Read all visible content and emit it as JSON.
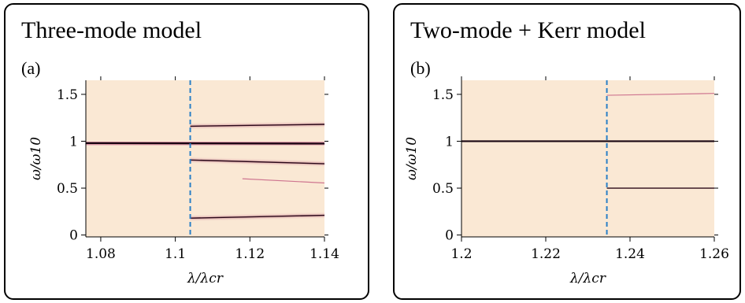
{
  "panels": [
    {
      "title": "Three-mode model",
      "letter": "(a)",
      "chart_data": {
        "type": "heatmap",
        "title": "Three-mode model",
        "xlabel": "λ/λcr",
        "ylabel": "ω/ω10",
        "xlim": [
          1.076,
          1.14
        ],
        "ylim": [
          -0.02,
          1.65
        ],
        "xticks": [
          1.08,
          1.1,
          1.12,
          1.14
        ],
        "xtick_labels": [
          "1.08",
          "1.1",
          "1.12",
          "1.14"
        ],
        "yticks": [
          0,
          0.5,
          1,
          1.5
        ],
        "ytick_labels": [
          "0",
          "0.5",
          "1",
          "1.5"
        ],
        "critical_lambda": 1.104,
        "background_color": "#fae8d4",
        "vline_color": "#2a7fc6",
        "lines": [
          {
            "x": [
              1.076,
              1.14
            ],
            "y": [
              0.98,
              0.975
            ],
            "weight": "strong"
          },
          {
            "x": [
              1.104,
              1.14
            ],
            "y": [
              1.16,
              1.18
            ],
            "weight": "medium"
          },
          {
            "x": [
              1.104,
              1.14
            ],
            "y": [
              0.8,
              0.76
            ],
            "weight": "medium"
          },
          {
            "x": [
              1.118,
              1.14
            ],
            "y": [
              0.6,
              0.555
            ],
            "weight": "faint"
          },
          {
            "x": [
              1.104,
              1.14
            ],
            "y": [
              0.18,
              0.21
            ],
            "weight": "medium"
          }
        ]
      }
    },
    {
      "title": "Two-mode + Kerr model",
      "letter": "(b)",
      "chart_data": {
        "type": "heatmap",
        "title": "Two-mode + Kerr model",
        "xlabel": "λ/λcr",
        "ylabel": "ω/ω10",
        "xlim": [
          1.2,
          1.26
        ],
        "ylim": [
          -0.02,
          1.65
        ],
        "xticks": [
          1.2,
          1.22,
          1.24,
          1.26
        ],
        "xtick_labels": [
          "1.2",
          "1.22",
          "1.24",
          "1.26"
        ],
        "yticks": [
          0,
          0.5,
          1,
          1.5
        ],
        "ytick_labels": [
          "0",
          "0.5",
          "1",
          "1.5"
        ],
        "critical_lambda": 1.2345,
        "background_color": "#fae8d4",
        "vline_color": "#2a7fc6",
        "lines": [
          {
            "x": [
              1.2,
              1.26
            ],
            "y": [
              1.0,
              1.0
            ],
            "weight": "strong"
          },
          {
            "x": [
              1.2345,
              1.26
            ],
            "y": [
              1.49,
              1.51
            ],
            "weight": "faint"
          },
          {
            "x": [
              1.2345,
              1.26
            ],
            "y": [
              0.5,
              0.5
            ],
            "weight": "medium"
          }
        ]
      }
    }
  ]
}
